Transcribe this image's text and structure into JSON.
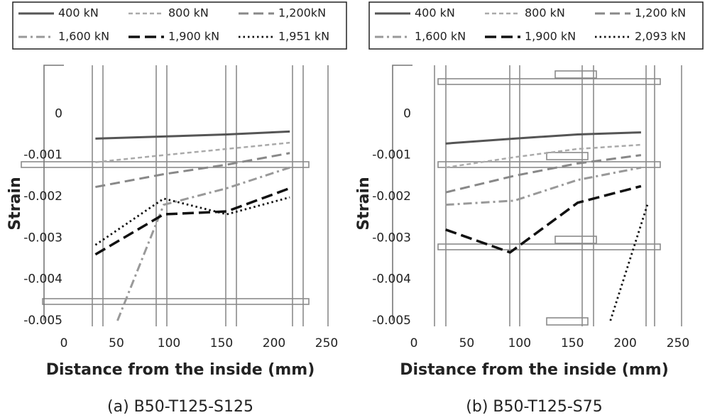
{
  "chart_data": [
    {
      "type": "line",
      "caption": "(a) B50-T125-S125",
      "xlabel": "Distance from the inside (mm)",
      "ylabel": "Strain",
      "xlim": [
        0,
        250
      ],
      "xticks": [
        0,
        50,
        100,
        150,
        200,
        250
      ],
      "ylim": [
        -0.005,
        0.001
      ],
      "yticks": [
        0,
        -0.001,
        -0.002,
        -0.003,
        -0.004,
        -0.005
      ],
      "series": [
        {
          "name": "400 kN",
          "color": "#555555",
          "style": "solid",
          "x": [
            30,
            95,
            155,
            215
          ],
          "values": [
            -0.0006,
            -0.00055,
            -0.0005,
            -0.00043
          ]
        },
        {
          "name": "800 kN",
          "color": "#aaaaaa",
          "style": "short-dash",
          "x": [
            30,
            95,
            155,
            215
          ],
          "values": [
            -0.00117,
            -0.001,
            -0.00085,
            -0.0007
          ]
        },
        {
          "name": "1,200kN",
          "color": "#888888",
          "style": "long-dash",
          "x": [
            30,
            95,
            155,
            215
          ],
          "values": [
            -0.00177,
            -0.00146,
            -0.00123,
            -0.00095
          ]
        },
        {
          "name": "1,600 kN",
          "color": "#999999",
          "style": "dash-dot",
          "x": [
            51,
            95,
            155,
            215
          ],
          "values": [
            -0.005,
            -0.0022,
            -0.0018,
            -0.0013
          ]
        },
        {
          "name": "1,900 kN",
          "color": "#111111",
          "style": "long-dash-bold",
          "x": [
            30,
            95,
            155,
            215
          ],
          "values": [
            -0.0034,
            -0.00243,
            -0.00236,
            -0.0018
          ]
        },
        {
          "name": "1,951 kN",
          "color": "#111111",
          "style": "dotted",
          "x": [
            30,
            95,
            155,
            215
          ],
          "values": [
            -0.00317,
            -0.00205,
            -0.00243,
            -0.00202
          ]
        }
      ]
    },
    {
      "type": "line",
      "caption": "(b) B50-T125-S75",
      "xlabel": "Distance from the inside (mm)",
      "ylabel": "Strain",
      "xlim": [
        0,
        250
      ],
      "xticks": [
        0,
        50,
        100,
        150,
        200,
        250
      ],
      "ylim": [
        -0.005,
        0.001
      ],
      "yticks": [
        0,
        -0.001,
        -0.002,
        -0.003,
        -0.004,
        -0.005
      ],
      "series": [
        {
          "name": "400 kN",
          "color": "#555555",
          "style": "solid",
          "x": [
            30,
            95,
            155,
            215
          ],
          "values": [
            -0.00072,
            -0.0006,
            -0.0005,
            -0.00045
          ]
        },
        {
          "name": "800 kN",
          "color": "#aaaaaa",
          "style": "short-dash",
          "x": [
            30,
            95,
            155,
            215
          ],
          "values": [
            -0.0013,
            -0.00105,
            -0.00085,
            -0.00075
          ]
        },
        {
          "name": "1,200 kN",
          "color": "#888888",
          "style": "long-dash",
          "x": [
            30,
            95,
            155,
            215
          ],
          "values": [
            -0.0019,
            -0.0015,
            -0.0012,
            -0.001
          ]
        },
        {
          "name": "1,600 kN",
          "color": "#999999",
          "style": "dash-dot",
          "x": [
            30,
            95,
            155,
            215
          ],
          "values": [
            -0.0022,
            -0.0021,
            -0.0016,
            -0.0013
          ]
        },
        {
          "name": "1,900 kN",
          "color": "#111111",
          "style": "long-dash-bold",
          "x": [
            30,
            91,
            155,
            215
          ],
          "values": [
            -0.0028,
            -0.00335,
            -0.00215,
            -0.00175
          ]
        },
        {
          "name": "2,093 kN",
          "color": "#111111",
          "style": "dotted",
          "x": [
            186,
            221
          ],
          "values": [
            -0.005,
            -0.0022
          ]
        }
      ]
    }
  ]
}
